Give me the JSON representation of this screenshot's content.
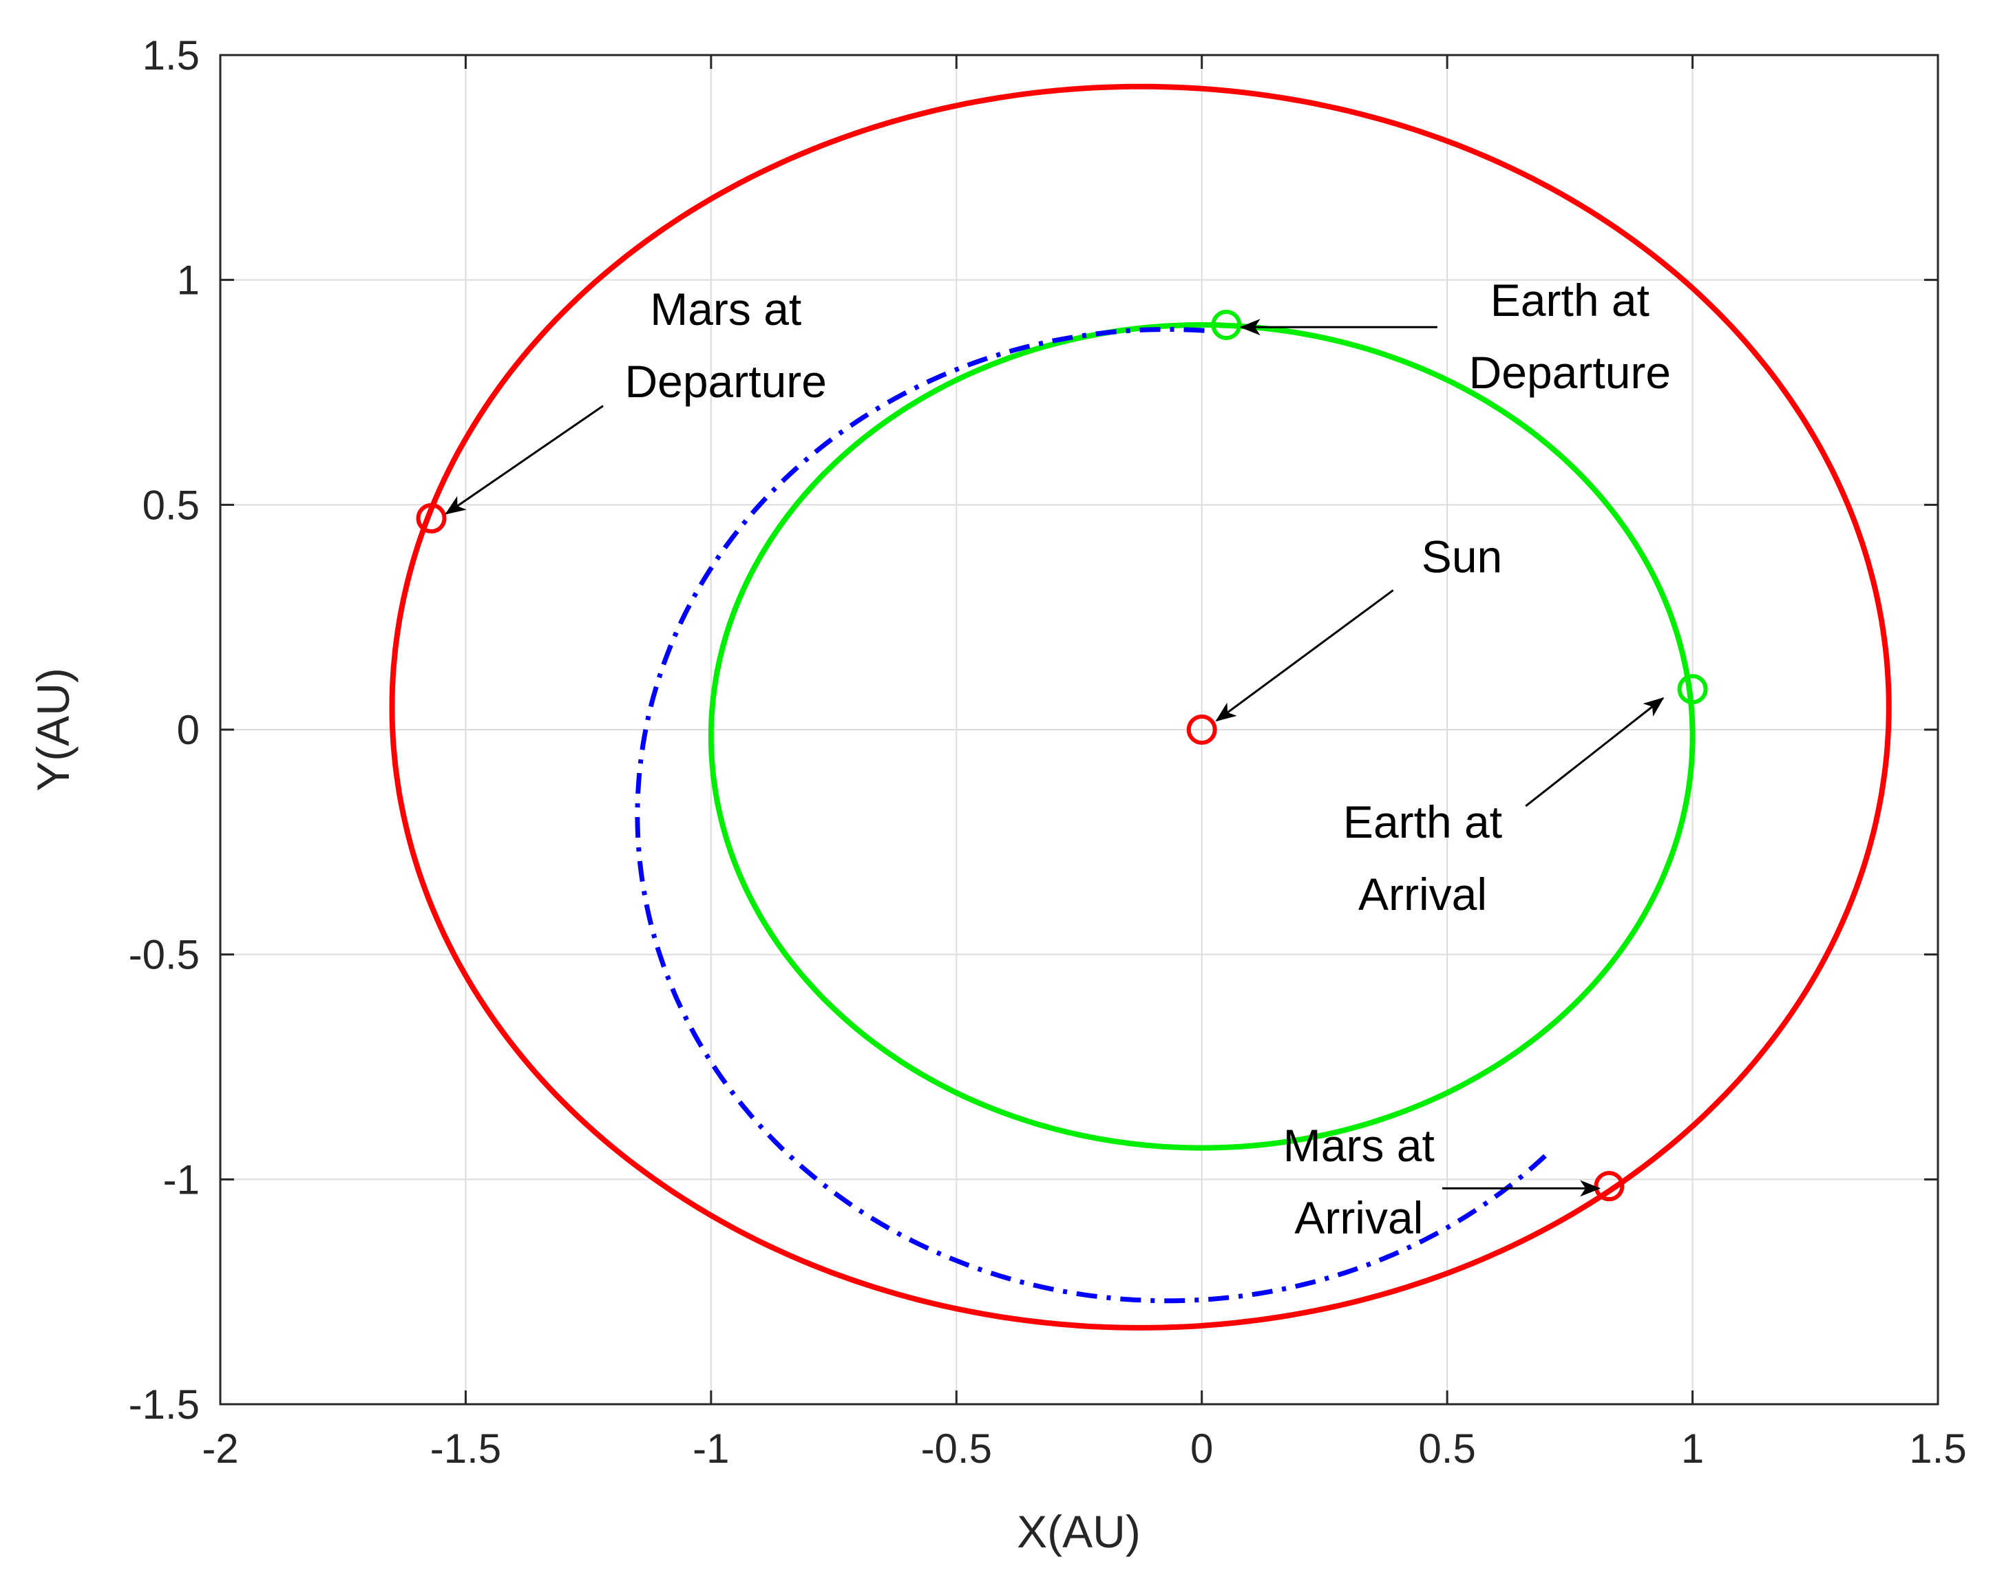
{
  "chart_data": {
    "type": "line",
    "title": "",
    "xlabel": "X(AU)",
    "ylabel": "Y(AU)",
    "xlim": [
      -2,
      1.5
    ],
    "ylim": [
      -1.5,
      1.5
    ],
    "xticks": [
      "-2",
      "-1.5",
      "-1",
      "-0.5",
      "0",
      "0.5",
      "1",
      "1.5"
    ],
    "yticks": [
      "-1.5",
      "-1",
      "-0.5",
      "0",
      "0.5",
      "1",
      "1.5"
    ],
    "grid": true,
    "colors": {
      "mars": "#ff0000",
      "earth": "#00ee00",
      "transfer": "#0000ff",
      "arrow": "#000000"
    },
    "series": [
      {
        "curve": "mars-orbit",
        "kind": "ellipse",
        "cx": -0.125,
        "cy": 0.05,
        "rx": 1.525,
        "ry": 1.38,
        "color": "#ff0000",
        "style": "solid"
      },
      {
        "curve": "earth-orbit",
        "kind": "ellipse",
        "cx": 0.0,
        "cy": -0.015,
        "rx": 1.0,
        "ry": 0.915,
        "color": "#00ee00",
        "style": "solid"
      },
      {
        "curve": "transfer-orbit",
        "kind": "arc",
        "cx": -0.07,
        "cy": -0.19,
        "rx": 1.08,
        "ry": 1.08,
        "from_deg": 86,
        "to_deg": 316,
        "color": "#0000ff",
        "style": "dashdot"
      }
    ],
    "markers": [
      {
        "point": "sun",
        "x": 0.0,
        "y": 0.0,
        "color": "#ff0000"
      },
      {
        "point": "earth-departure",
        "x": 0.05,
        "y": 0.9,
        "color": "#00ee00"
      },
      {
        "point": "earth-arrival",
        "x": 1.0,
        "y": 0.09,
        "color": "#00ee00"
      },
      {
        "point": "mars-departure",
        "x": -1.57,
        "y": 0.47,
        "color": "#ff0000"
      },
      {
        "point": "mars-arrival",
        "x": 0.83,
        "y": -1.015,
        "color": "#ff0000"
      }
    ],
    "annotations": [
      {
        "lines": [
          "Mars at",
          "Departure"
        ],
        "text_x": -0.97,
        "text_y": 0.9,
        "arrow_from": [
          -1.22,
          0.72
        ],
        "arrow_to": [
          -1.54,
          0.48
        ]
      },
      {
        "lines": [
          "Earth at",
          "Departure"
        ],
        "text_x": 0.75,
        "text_y": 0.92,
        "arrow_from": [
          0.48,
          0.895
        ],
        "arrow_to": [
          0.08,
          0.895
        ]
      },
      {
        "lines": [
          "Sun"
        ],
        "text_x": 0.53,
        "text_y": 0.35,
        "arrow_from": [
          0.39,
          0.31
        ],
        "arrow_to": [
          0.03,
          0.02
        ]
      },
      {
        "lines": [
          "Earth at",
          "Arrival"
        ],
        "text_x": 0.45,
        "text_y": -0.24,
        "arrow_from": [
          0.66,
          -0.17
        ],
        "arrow_to": [
          0.94,
          0.07
        ]
      },
      {
        "lines": [
          "Mars at",
          "Arrival"
        ],
        "text_x": 0.32,
        "text_y": -0.96,
        "arrow_from": [
          0.49,
          -1.02
        ],
        "arrow_to": [
          0.81,
          -1.02
        ]
      }
    ]
  }
}
